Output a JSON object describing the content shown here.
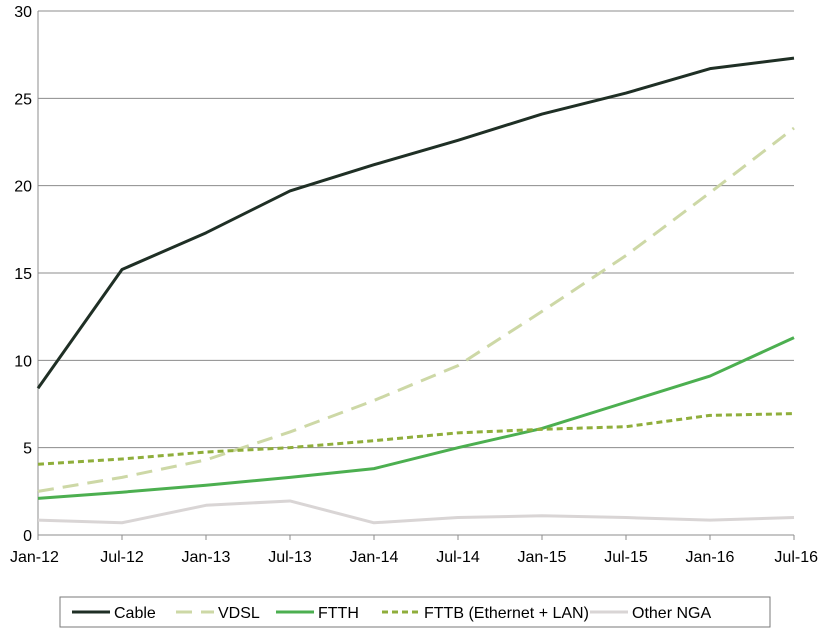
{
  "chart_data": {
    "type": "line",
    "categories": [
      "Jan-12",
      "Jul-12",
      "Jan-13",
      "Jul-13",
      "Jan-14",
      "Jul-14",
      "Jan-15",
      "Jul-15",
      "Jan-16",
      "Jul-16"
    ],
    "y_ticks": [
      "0",
      "5",
      "10",
      "15",
      "20",
      "25",
      "30"
    ],
    "ylim": [
      0,
      30
    ],
    "grid": true,
    "legend_position": "bottom",
    "series": [
      {
        "name": "Cable",
        "color": "#1f2f25",
        "dash": "solid",
        "values": [
          8.4,
          15.2,
          17.3,
          19.7,
          21.2,
          22.6,
          24.1,
          25.3,
          26.7,
          27.3
        ]
      },
      {
        "name": "VDSL",
        "color": "#cdd8a6",
        "dash": "long-dash",
        "values": [
          2.5,
          3.3,
          4.3,
          5.9,
          7.7,
          9.7,
          12.8,
          16.0,
          19.6,
          23.3
        ]
      },
      {
        "name": "FTTH",
        "color": "#4caf50",
        "dash": "solid",
        "values": [
          2.1,
          2.45,
          2.85,
          3.3,
          3.8,
          5.0,
          6.1,
          7.6,
          9.1,
          11.3
        ]
      },
      {
        "name": "FTTB (Ethernet + LAN)",
        "color": "#8fae3b",
        "dash": "short-dash",
        "values": [
          4.05,
          4.35,
          4.75,
          5.0,
          5.4,
          5.85,
          6.05,
          6.2,
          6.85,
          6.95
        ]
      },
      {
        "name": "Other NGA",
        "color": "#d9d5d5",
        "dash": "solid",
        "values": [
          0.85,
          0.7,
          1.7,
          1.95,
          0.7,
          1.0,
          1.1,
          1.0,
          0.85,
          1.0
        ]
      }
    ]
  }
}
